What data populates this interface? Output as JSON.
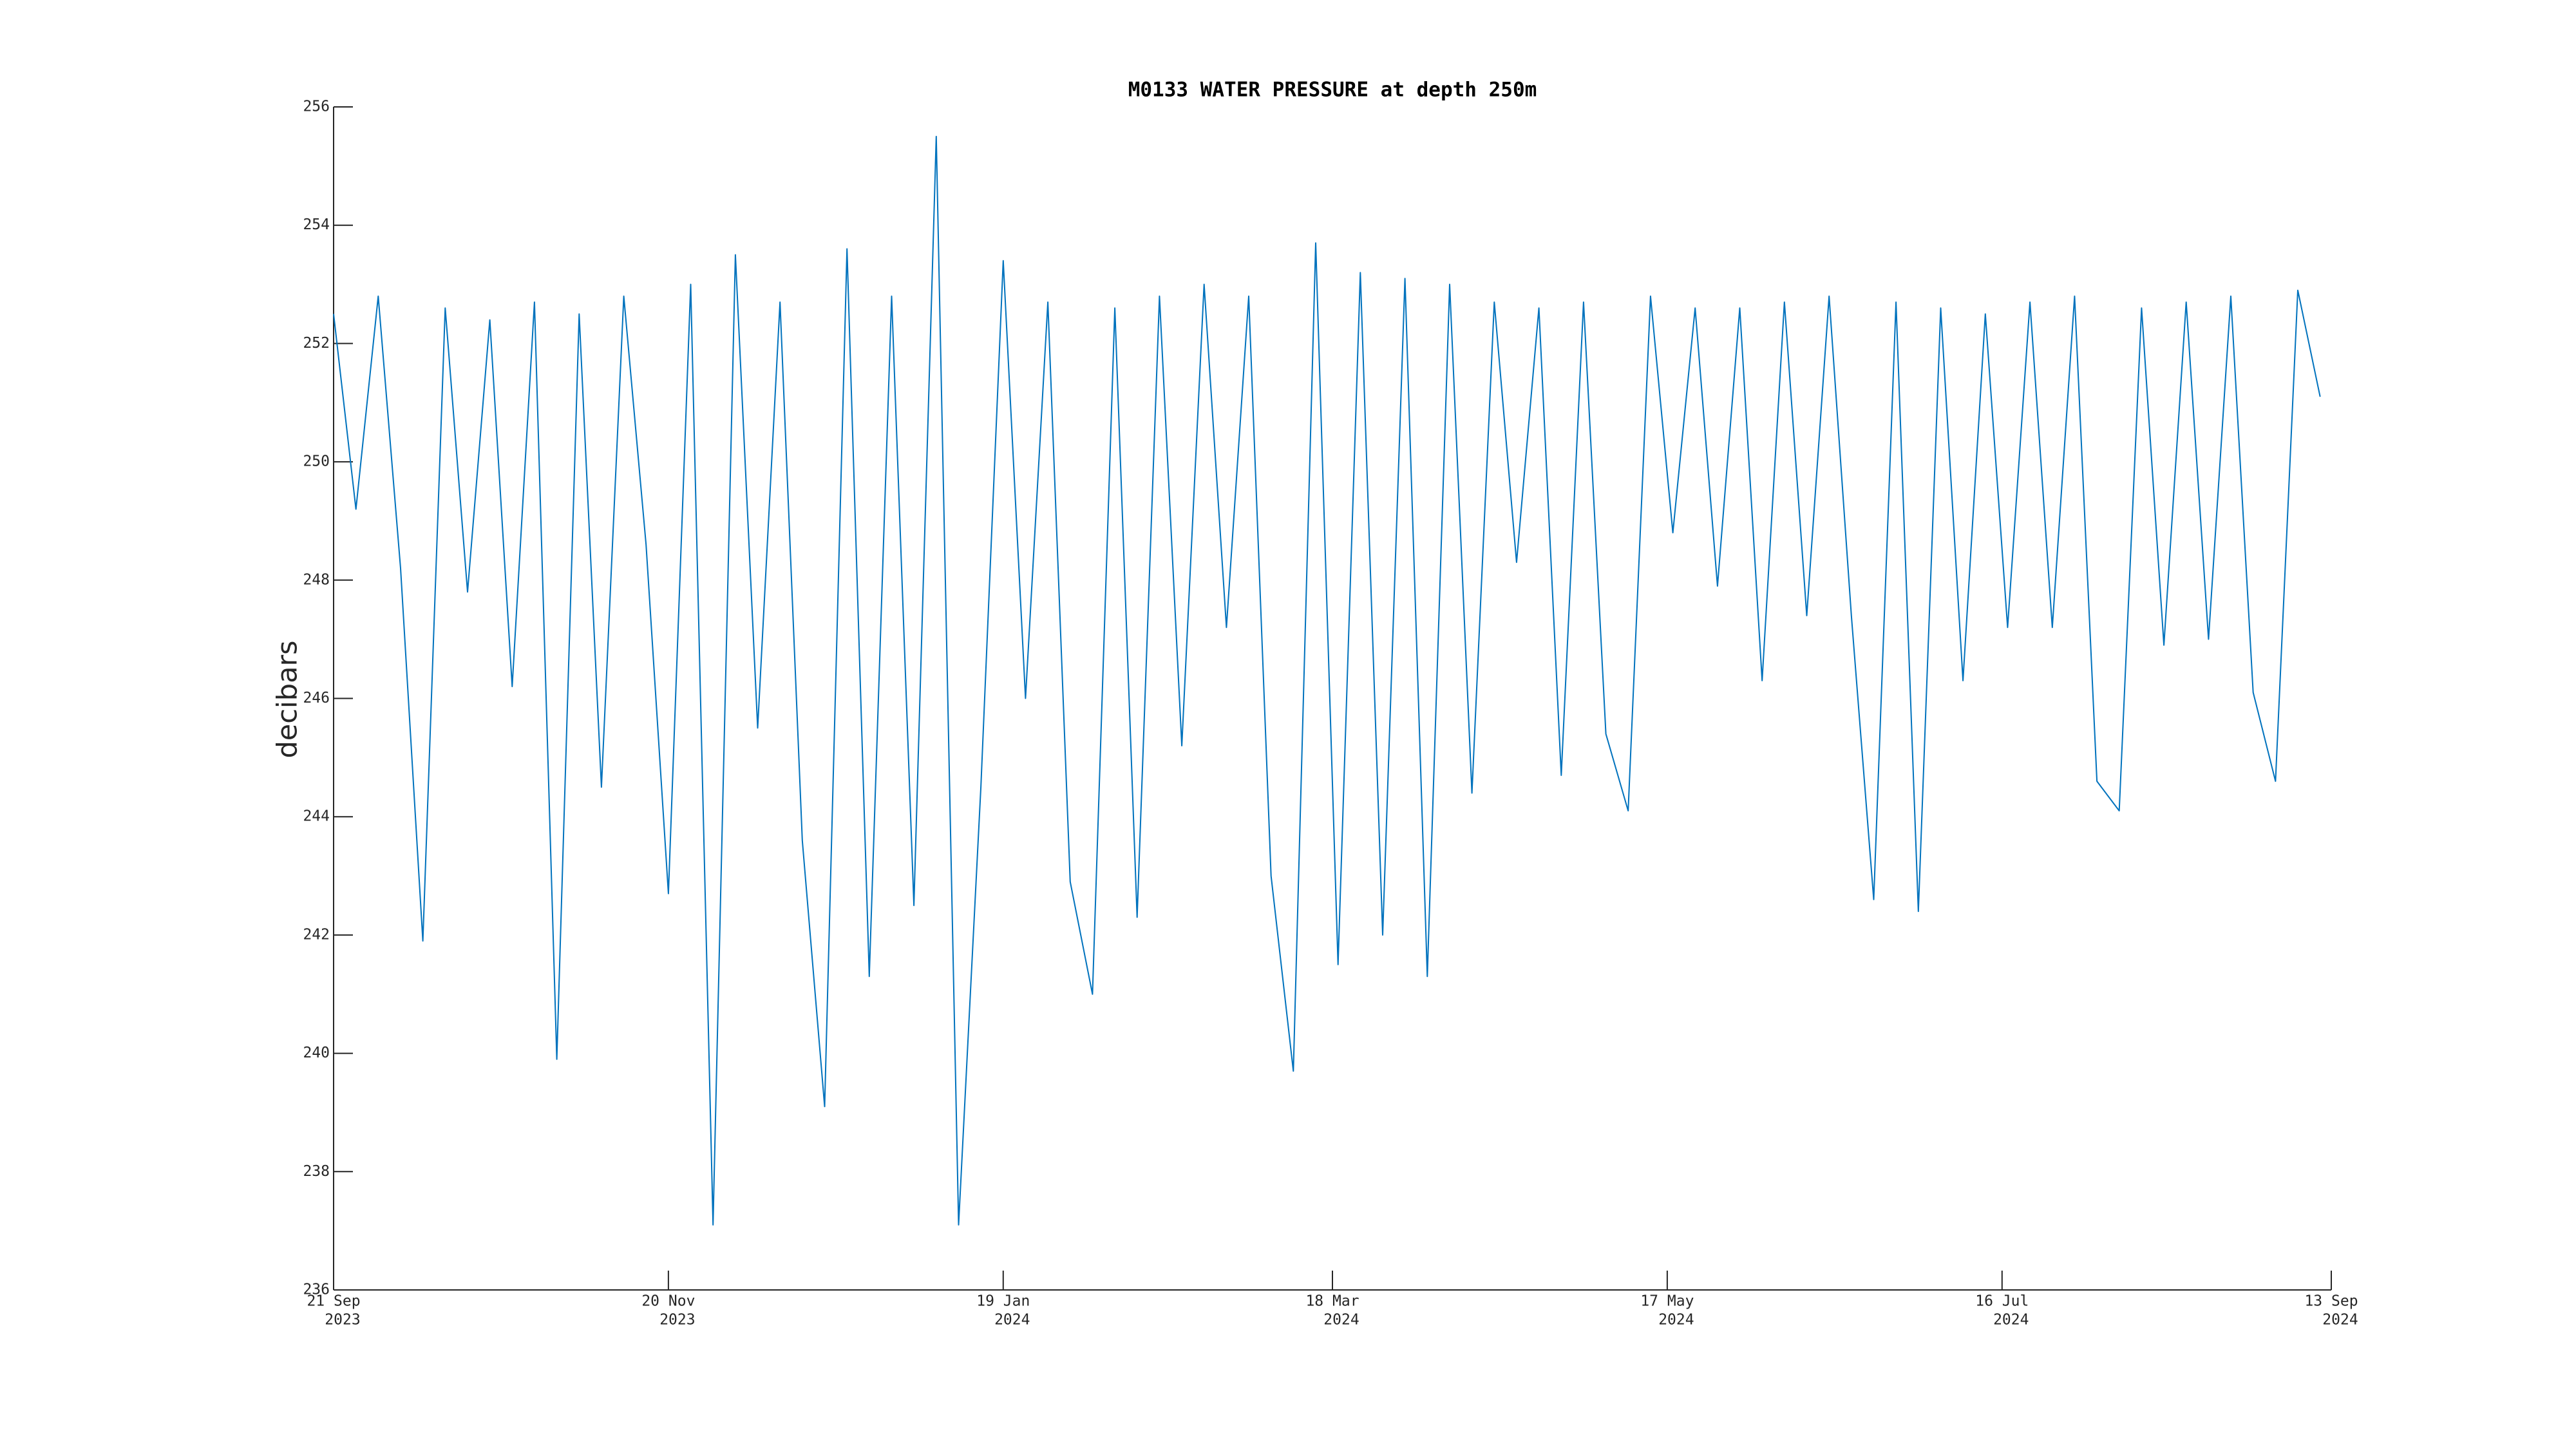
{
  "chart_data": {
    "type": "line",
    "title": "M0133 WATER PRESSURE at depth 250m",
    "ylabel": "decibars",
    "color": "#0072bd",
    "x": [
      "2023-09-21",
      "2023-09-25",
      "2023-09-29",
      "2023-10-03",
      "2023-10-07",
      "2023-10-11",
      "2023-10-15",
      "2023-10-19",
      "2023-10-23",
      "2023-10-27",
      "2023-10-31",
      "2023-11-04",
      "2023-11-08",
      "2023-11-12",
      "2023-11-16",
      "2023-11-20",
      "2023-11-24",
      "2023-11-28",
      "2023-12-02",
      "2023-12-06",
      "2023-12-10",
      "2023-12-14",
      "2023-12-18",
      "2023-12-22",
      "2023-12-26",
      "2023-12-30",
      "2024-01-03",
      "2024-01-07",
      "2024-01-11",
      "2024-01-15",
      "2024-01-19",
      "2024-01-23",
      "2024-01-27",
      "2024-01-31",
      "2024-02-04",
      "2024-02-08",
      "2024-02-12",
      "2024-02-16",
      "2024-02-20",
      "2024-02-24",
      "2024-02-28",
      "2024-03-03",
      "2024-03-07",
      "2024-03-11",
      "2024-03-15",
      "2024-03-19",
      "2024-03-23",
      "2024-03-27",
      "2024-03-31",
      "2024-04-04",
      "2024-04-08",
      "2024-04-12",
      "2024-04-16",
      "2024-04-20",
      "2024-04-24",
      "2024-04-28",
      "2024-05-02",
      "2024-05-06",
      "2024-05-10",
      "2024-05-14",
      "2024-05-18",
      "2024-05-22",
      "2024-05-26",
      "2024-05-30",
      "2024-06-03",
      "2024-06-07",
      "2024-06-11",
      "2024-06-15",
      "2024-06-19",
      "2024-06-23",
      "2024-06-27",
      "2024-07-01",
      "2024-07-05",
      "2024-07-09",
      "2024-07-13",
      "2024-07-17",
      "2024-07-21",
      "2024-07-25",
      "2024-07-29",
      "2024-08-02",
      "2024-08-06",
      "2024-08-10",
      "2024-08-14",
      "2024-08-18",
      "2024-08-22",
      "2024-08-26",
      "2024-08-30",
      "2024-09-03",
      "2024-09-07",
      "2024-09-11"
    ],
    "values": [
      252.5,
      249.2,
      252.8,
      248.2,
      241.9,
      252.6,
      247.8,
      252.4,
      246.2,
      252.7,
      239.9,
      252.5,
      244.5,
      252.8,
      248.6,
      242.7,
      253.0,
      237.1,
      253.5,
      245.5,
      252.7,
      243.6,
      239.1,
      253.6,
      241.3,
      252.8,
      242.5,
      255.5,
      237.1,
      244.5,
      253.4,
      246.0,
      252.7,
      242.9,
      241.0,
      252.6,
      242.3,
      252.8,
      245.2,
      253.0,
      247.2,
      252.8,
      243.0,
      239.7,
      253.7,
      241.5,
      253.2,
      242.0,
      253.1,
      241.3,
      253.0,
      244.4,
      252.7,
      248.3,
      252.6,
      244.7,
      252.7,
      245.4,
      244.1,
      252.8,
      248.8,
      252.6,
      247.9,
      252.6,
      246.3,
      252.7,
      247.4,
      252.8,
      247.4,
      242.6,
      252.7,
      242.4,
      252.6,
      246.3,
      252.5,
      247.2,
      252.7,
      247.2,
      252.8,
      244.6,
      244.1,
      252.6,
      246.9,
      252.7,
      247.0,
      252.8,
      246.1,
      244.6,
      252.9,
      251.1
    ],
    "xlim": [
      "2023-09-21",
      "2024-09-13"
    ],
    "xticks": [
      {
        "value": "2023-09-21",
        "label": [
          "21 Sep",
          "2023"
        ]
      },
      {
        "value": "2023-11-20",
        "label": [
          "20 Nov",
          "2023"
        ]
      },
      {
        "value": "2024-01-19",
        "label": [
          "19 Jan",
          "2024"
        ]
      },
      {
        "value": "2024-03-18",
        "label": [
          "18 Mar",
          "2024"
        ]
      },
      {
        "value": "2024-05-17",
        "label": [
          "17 May",
          "2024"
        ]
      },
      {
        "value": "2024-07-16",
        "label": [
          "16 Jul",
          "2024"
        ]
      },
      {
        "value": "2024-09-13",
        "label": [
          "13 Sep",
          "2024"
        ]
      }
    ],
    "ylim": [
      236,
      256
    ],
    "yticks": [
      236,
      238,
      240,
      242,
      244,
      246,
      248,
      250,
      252,
      254,
      256
    ]
  }
}
